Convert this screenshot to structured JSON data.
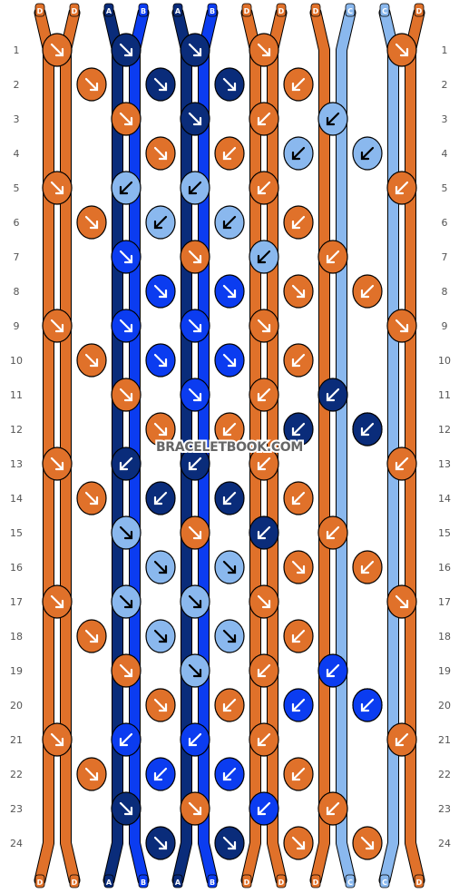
{
  "watermark": "BRACELETBOOK.COM",
  "strands": {
    "top": [
      "D",
      "D",
      "A",
      "B",
      "A",
      "B",
      "D",
      "D",
      "D",
      "C",
      "C",
      "D"
    ],
    "bottom": [
      "D",
      "D",
      "A",
      "B",
      "A",
      "B",
      "D",
      "D",
      "D",
      "C",
      "C",
      "D"
    ]
  },
  "colors": {
    "A": "#0a2c7a",
    "B": "#0b3cf0",
    "C": "#8ab8ee",
    "D": "#e0712a",
    "outline": "#000000",
    "background": "#ffffff"
  },
  "rows": [
    {
      "label": "1"
    },
    {
      "label": "2"
    },
    {
      "label": "3"
    },
    {
      "label": "4"
    },
    {
      "label": "5"
    },
    {
      "label": "6"
    },
    {
      "label": "7"
    },
    {
      "label": "8"
    },
    {
      "label": "9"
    },
    {
      "label": "10"
    },
    {
      "label": "11"
    },
    {
      "label": "12"
    },
    {
      "label": "13"
    },
    {
      "label": "14"
    },
    {
      "label": "15"
    },
    {
      "label": "16"
    },
    {
      "label": "17"
    },
    {
      "label": "18"
    },
    {
      "label": "19"
    },
    {
      "label": "20"
    },
    {
      "label": "21"
    },
    {
      "label": "22"
    },
    {
      "label": "23"
    },
    {
      "label": "24"
    }
  ],
  "knots": [
    [
      {
        "c": "D",
        "d": "r"
      },
      {
        "c": "A",
        "d": "r"
      },
      {
        "c": "A",
        "d": "r"
      },
      {
        "c": "D",
        "d": "r"
      }
    ],
    [
      {
        "c": "D",
        "d": "r"
      },
      {
        "c": "A",
        "d": "r"
      },
      {
        "c": "A",
        "d": "r"
      },
      {
        "c": "D",
        "d": "l"
      }
    ],
    [
      {
        "c": "D",
        "d": "r"
      },
      {
        "c": "A",
        "d": "r"
      },
      {
        "c": "D",
        "d": "l"
      },
      {
        "c": "C",
        "d": "l"
      }
    ],
    [
      {
        "c": "D",
        "d": "r"
      },
      {
        "c": "D",
        "d": "l"
      },
      {
        "c": "C",
        "d": "l"
      },
      {
        "c": "C",
        "d": "l"
      }
    ],
    [
      {
        "c": "D",
        "d": "r"
      },
      {
        "c": "C",
        "d": "l"
      },
      {
        "c": "C",
        "d": "l"
      },
      {
        "c": "D",
        "d": "l"
      }
    ],
    [
      {
        "c": "D",
        "d": "r"
      },
      {
        "c": "C",
        "d": "l"
      },
      {
        "c": "C",
        "d": "l"
      },
      {
        "c": "D",
        "d": "l"
      }
    ],
    [
      {
        "c": "B",
        "d": "r"
      },
      {
        "c": "D",
        "d": "r"
      },
      {
        "c": "C",
        "d": "l"
      },
      {
        "c": "D",
        "d": "l"
      }
    ],
    [
      {
        "c": "B",
        "d": "r"
      },
      {
        "c": "B",
        "d": "r"
      },
      {
        "c": "D",
        "d": "r"
      },
      {
        "c": "D",
        "d": "l"
      }
    ],
    [
      {
        "c": "D",
        "d": "r"
      },
      {
        "c": "B",
        "d": "r"
      },
      {
        "c": "B",
        "d": "r"
      },
      {
        "c": "D",
        "d": "r"
      }
    ],
    [
      {
        "c": "D",
        "d": "r"
      },
      {
        "c": "B",
        "d": "r"
      },
      {
        "c": "B",
        "d": "r"
      },
      {
        "c": "D",
        "d": "l"
      }
    ],
    [
      {
        "c": "D",
        "d": "r"
      },
      {
        "c": "B",
        "d": "r"
      },
      {
        "c": "D",
        "d": "l"
      },
      {
        "c": "A",
        "d": "l"
      }
    ],
    [
      {
        "c": "D",
        "d": "r"
      },
      {
        "c": "D",
        "d": "l"
      },
      {
        "c": "A",
        "d": "l"
      },
      {
        "c": "A",
        "d": "l"
      }
    ],
    [
      {
        "c": "D",
        "d": "r"
      },
      {
        "c": "A",
        "d": "l"
      },
      {
        "c": "A",
        "d": "l"
      },
      {
        "c": "D",
        "d": "l"
      }
    ],
    [
      {
        "c": "D",
        "d": "r"
      },
      {
        "c": "A",
        "d": "l"
      },
      {
        "c": "A",
        "d": "l"
      },
      {
        "c": "D",
        "d": "l"
      }
    ],
    [
      {
        "c": "C",
        "d": "r"
      },
      {
        "c": "D",
        "d": "r"
      },
      {
        "c": "A",
        "d": "l"
      },
      {
        "c": "D",
        "d": "l"
      }
    ],
    [
      {
        "c": "C",
        "d": "r"
      },
      {
        "c": "C",
        "d": "r"
      },
      {
        "c": "D",
        "d": "r"
      },
      {
        "c": "D",
        "d": "l"
      }
    ],
    [
      {
        "c": "D",
        "d": "r"
      },
      {
        "c": "C",
        "d": "r"
      },
      {
        "c": "C",
        "d": "r"
      },
      {
        "c": "D",
        "d": "r"
      }
    ],
    [
      {
        "c": "D",
        "d": "r"
      },
      {
        "c": "C",
        "d": "r"
      },
      {
        "c": "C",
        "d": "r"
      },
      {
        "c": "D",
        "d": "l"
      }
    ],
    [
      {
        "c": "D",
        "d": "r"
      },
      {
        "c": "C",
        "d": "r"
      },
      {
        "c": "D",
        "d": "l"
      },
      {
        "c": "B",
        "d": "l"
      }
    ],
    [
      {
        "c": "D",
        "d": "r"
      },
      {
        "c": "D",
        "d": "l"
      },
      {
        "c": "B",
        "d": "l"
      },
      {
        "c": "B",
        "d": "l"
      }
    ],
    [
      {
        "c": "D",
        "d": "r"
      },
      {
        "c": "B",
        "d": "l"
      },
      {
        "c": "B",
        "d": "l"
      },
      {
        "c": "D",
        "d": "l"
      }
    ],
    [
      {
        "c": "D",
        "d": "r"
      },
      {
        "c": "B",
        "d": "l"
      },
      {
        "c": "B",
        "d": "l"
      },
      {
        "c": "D",
        "d": "l"
      }
    ],
    [
      {
        "c": "A",
        "d": "r"
      },
      {
        "c": "D",
        "d": "r"
      },
      {
        "c": "B",
        "d": "l"
      },
      {
        "c": "D",
        "d": "l"
      }
    ],
    [
      {
        "c": "A",
        "d": "r"
      },
      {
        "c": "A",
        "d": "r"
      },
      {
        "c": "D",
        "d": "r"
      },
      {
        "c": "D",
        "d": "r"
      }
    ]
  ],
  "knots_side": [
    [
      {
        "c": "D",
        "d": "r"
      }
    ],
    [],
    [],
    [],
    [
      {
        "c": "D",
        "d": "l"
      }
    ],
    [],
    [],
    [],
    [
      {
        "c": "D",
        "d": "r"
      }
    ],
    [],
    [],
    [
      {
        "c": "A",
        "d": "l"
      }
    ],
    [
      {
        "c": "D",
        "d": "l"
      }
    ],
    [],
    [],
    [],
    [
      {
        "c": "D",
        "d": "r"
      }
    ],
    [],
    [],
    [
      {
        "c": "B",
        "d": "l"
      }
    ],
    [
      {
        "c": "D",
        "d": "l"
      }
    ],
    [],
    [],
    []
  ]
}
